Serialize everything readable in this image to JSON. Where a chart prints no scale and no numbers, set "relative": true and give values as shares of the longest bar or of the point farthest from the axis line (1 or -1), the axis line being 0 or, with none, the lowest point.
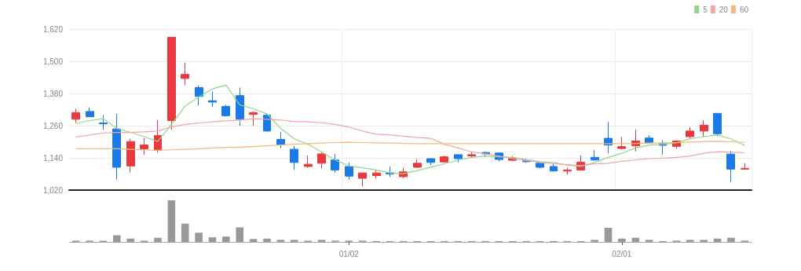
{
  "chart_data": [
    {
      "type": "candlestick",
      "categories": [
        null,
        null,
        null,
        null,
        null,
        null,
        null,
        null,
        null,
        null,
        null,
        null,
        null,
        null,
        null,
        null,
        null,
        null,
        null,
        null,
        null,
        null,
        null,
        null,
        null,
        null,
        null,
        null,
        null,
        null,
        null,
        null,
        null,
        null,
        null,
        null,
        null,
        null,
        null,
        null,
        null,
        null,
        null,
        null,
        null,
        null,
        null,
        null,
        null,
        null
      ],
      "ohlc": [
        [
          1284,
          1323,
          1270,
          1309
        ],
        [
          1313,
          1328,
          1293,
          1293
        ],
        [
          1270,
          1299,
          1245,
          1267
        ],
        [
          1248,
          1304,
          1059,
          1105
        ],
        [
          1110,
          1211,
          1086,
          1201
        ],
        [
          1174,
          1213,
          1152,
          1188
        ],
        [
          1169,
          1281,
          1159,
          1223
        ],
        [
          1279,
          1589,
          1245,
          1589
        ],
        [
          1436,
          1495,
          1411,
          1451
        ],
        [
          1402,
          1409,
          1335,
          1369
        ],
        [
          1353,
          1387,
          1330,
          1348
        ],
        [
          1332,
          1338,
          1294,
          1297
        ],
        [
          1372,
          1402,
          1260,
          1284
        ],
        [
          1302,
          1314,
          1260,
          1309
        ],
        [
          1299,
          1304,
          1238,
          1240
        ],
        [
          1209,
          1236,
          1177,
          1189
        ],
        [
          1172,
          1184,
          1095,
          1123
        ],
        [
          1108,
          1149,
          1103,
          1116
        ],
        [
          1120,
          1160,
          1100,
          1155
        ],
        [
          1132,
          1154,
          1086,
          1095
        ],
        [
          1108,
          1123,
          1059,
          1072
        ],
        [
          1064,
          1086,
          1033,
          1084
        ],
        [
          1074,
          1095,
          1064,
          1084
        ],
        [
          1084,
          1108,
          1069,
          1080
        ],
        [
          1070,
          1103,
          1064,
          1088
        ],
        [
          1105,
          1134,
          1103,
          1120
        ],
        [
          1137,
          1137,
          1113,
          1123
        ],
        [
          1125,
          1149,
          1123,
          1144
        ],
        [
          1152,
          1152,
          1123,
          1137
        ],
        [
          1147,
          1162,
          1142,
          1152
        ],
        [
          1160,
          1164,
          1142,
          1155
        ],
        [
          1158,
          1160,
          1127,
          1134
        ],
        [
          1131,
          1147,
          1127,
          1138
        ],
        [
          1129,
          1137,
          1121,
          1126
        ],
        [
          1120,
          1123,
          1101,
          1105
        ],
        [
          1108,
          1118,
          1090,
          1091
        ],
        [
          1091,
          1103,
          1078,
          1095
        ],
        [
          1095,
          1149,
          1093,
          1124
        ],
        [
          1142,
          1169,
          1129,
          1132
        ],
        [
          1213,
          1274,
          1157,
          1188
        ],
        [
          1175,
          1218,
          1172,
          1182
        ],
        [
          1185,
          1245,
          1164,
          1203
        ],
        [
          1214,
          1224,
          1193,
          1196
        ],
        [
          1193,
          1206,
          1152,
          1187
        ],
        [
          1183,
          1206,
          1174,
          1203
        ],
        [
          1219,
          1255,
          1211,
          1240
        ],
        [
          1240,
          1280,
          1219,
          1262
        ],
        [
          1306,
          1306,
          1221,
          1230
        ],
        [
          1154,
          1166,
          1049,
          1098
        ],
        [
          1098,
          1121,
          1096,
          1101
        ]
      ],
      "colors": [
        "#e8393f",
        "#1a7ae8",
        "#1a7ae8",
        "#1a7ae8",
        "#e8393f",
        "#e8393f",
        "#e8393f",
        "#e8393f",
        "#e8393f",
        "#1a7ae8",
        "#1a7ae8",
        "#1a7ae8",
        "#1a7ae8",
        "#e8393f",
        "#1a7ae8",
        "#1a7ae8",
        "#1a7ae8",
        "#e8393f",
        "#e8393f",
        "#1a7ae8",
        "#1a7ae8",
        "#e8393f",
        "#e8393f",
        "#1a7ae8",
        "#e8393f",
        "#e8393f",
        "#1a7ae8",
        "#e8393f",
        "#1a7ae8",
        "#e8393f",
        "#1a7ae8",
        "#1a7ae8",
        "#e8393f",
        "#1a7ae8",
        "#1a7ae8",
        "#1a7ae8",
        "#e8393f",
        "#e8393f",
        "#1a7ae8",
        "#1a7ae8",
        "#e8393f",
        "#e8393f",
        "#1a7ae8",
        "#1a7ae8",
        "#e8393f",
        "#e8393f",
        "#e8393f",
        "#1a7ae8",
        "#1a7ae8",
        "#e8393f"
      ],
      "series": [
        {
          "name": "5",
          "type": "line",
          "color": "#8fd68a",
          "values": [
            1268,
            1279,
            1286,
            1250,
            1235,
            1219,
            1201,
            1265,
            1333,
            1367,
            1397,
            1411,
            1338,
            1323,
            1304,
            1250,
            1211,
            1191,
            1162,
            1132,
            1110,
            1103,
            1095,
            1084,
            1081,
            1093,
            1105,
            1118,
            1132,
            1142,
            1147,
            1144,
            1142,
            1134,
            1126,
            1123,
            1113,
            1108,
            1123,
            1142,
            1157,
            1177,
            1188,
            1191,
            1196,
            1211,
            1219,
            1225,
            1211,
            1186
          ]
        },
        {
          "name": "20",
          "type": "line",
          "color": "#f4a3a6",
          "values": [
            1218,
            1225,
            1233,
            1235,
            1235,
            1237,
            1240,
            1255,
            1265,
            1270,
            1274,
            1278,
            1281,
            1286,
            1284,
            1281,
            1276,
            1274,
            1271,
            1265,
            1255,
            1240,
            1228,
            1225,
            1221,
            1216,
            1213,
            1191,
            1177,
            1162,
            1155,
            1147,
            1137,
            1131,
            1123,
            1118,
            1115,
            1111,
            1118,
            1120,
            1127,
            1132,
            1137,
            1139,
            1142,
            1147,
            1157,
            1163,
            1161,
            1159
          ]
        },
        {
          "name": "60",
          "type": "line",
          "color": "#f5b87a",
          "values": [
            1174,
            1174,
            1174,
            1174,
            1172,
            1170,
            1168,
            1170,
            1172,
            1174,
            1177,
            1179,
            1180,
            1182,
            1185,
            1188,
            1191,
            1193,
            1195,
            1197,
            1198,
            1197,
            1196,
            1195,
            1194,
            1193,
            1193,
            1193,
            1193,
            1193,
            1193,
            1193,
            1193,
            1193,
            1193,
            1193,
            1193,
            1193,
            1193,
            1193,
            1193,
            1194,
            1195,
            1196,
            1197,
            1199,
            1201,
            1202,
            1200,
            1197
          ]
        }
      ],
      "ylim": [
        1020,
        1620
      ],
      "yticks": [
        {
          "value": 1020,
          "label": "1,020"
        },
        {
          "value": 1140,
          "label": "1,140"
        },
        {
          "value": 1260,
          "label": "1,260"
        },
        {
          "value": 1380,
          "label": "1,380"
        },
        {
          "value": 1500,
          "label": "1,500"
        },
        {
          "value": 1620,
          "label": "1,620"
        }
      ],
      "grid": true,
      "legend": "top right",
      "marker": "none",
      "tick_labels": "y"
    },
    {
      "type": "bar",
      "relative": true,
      "color": "#999999",
      "tick_labels": "x",
      "categories": [
        null,
        null,
        null,
        null,
        null,
        null,
        null,
        null,
        null,
        null,
        null,
        null,
        null,
        null,
        null,
        null,
        null,
        null,
        null,
        null,
        "01/02",
        null,
        null,
        null,
        null,
        null,
        null,
        null,
        null,
        null,
        null,
        null,
        null,
        null,
        null,
        null,
        null,
        null,
        null,
        null,
        "02/01",
        null,
        null,
        null,
        null,
        null,
        null,
        null,
        null,
        null
      ],
      "values": [
        0.03,
        0.03,
        0.03,
        0.16,
        0.08,
        0.03,
        0.1,
        1,
        0.44,
        0.22,
        0.11,
        0.13,
        0.35,
        0.07,
        0.08,
        0.05,
        0.05,
        0.03,
        0.05,
        0.03,
        0.03,
        0.03,
        0.02,
        0.02,
        0.02,
        0.02,
        0.02,
        0.02,
        0.02,
        0.02,
        0.02,
        0.02,
        0.02,
        0.02,
        0.02,
        0.02,
        0.02,
        0.02,
        0.05,
        0.34,
        0.08,
        0.1,
        0.05,
        0.02,
        0.03,
        0.05,
        0.05,
        0.08,
        0.1,
        0.03
      ]
    }
  ]
}
